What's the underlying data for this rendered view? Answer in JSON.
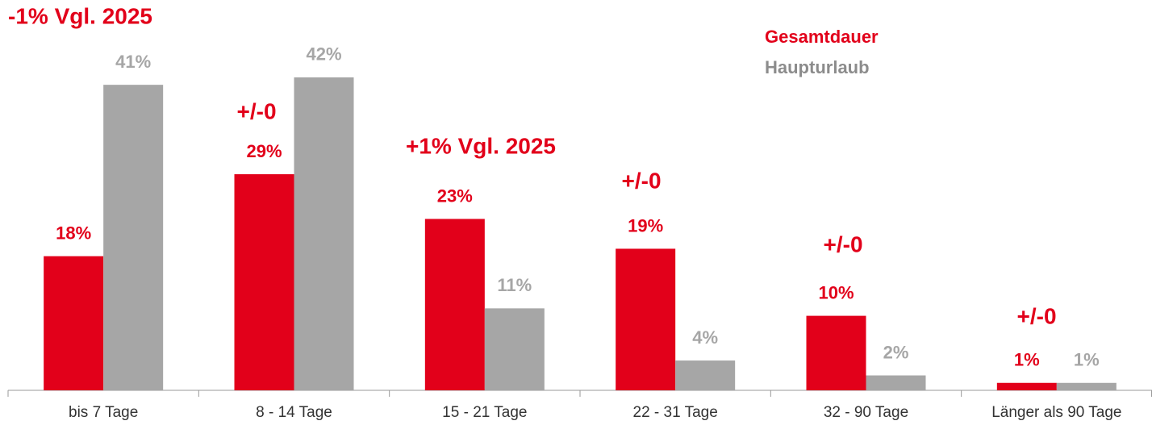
{
  "chart_data": {
    "type": "bar",
    "categories": [
      "bis 7 Tage",
      "8 - 14 Tage",
      "15 - 21 Tage",
      "22 - 31 Tage",
      "32 - 90 Tage",
      "Länger als 90 Tage"
    ],
    "series": [
      {
        "name": "Gesamtdauer",
        "color": "#e2001a",
        "values": [
          18,
          29,
          23,
          19,
          10,
          1
        ],
        "value_labels": [
          "18%",
          "29%",
          "23%",
          "19%",
          "10%",
          "1%"
        ]
      },
      {
        "name": "Haupturlaub",
        "color": "#a6a6a6",
        "values": [
          41,
          42,
          11,
          4,
          2,
          1
        ],
        "value_labels": [
          "41%",
          "42%",
          "11%",
          "4%",
          "2%",
          "1%"
        ]
      }
    ],
    "annotations": [
      "-1% Vgl. 2025",
      "+/-0",
      "+1% Vgl. 2025",
      "+/-0",
      "+/-0",
      "+/-0"
    ],
    "legend": "top-right"
  }
}
